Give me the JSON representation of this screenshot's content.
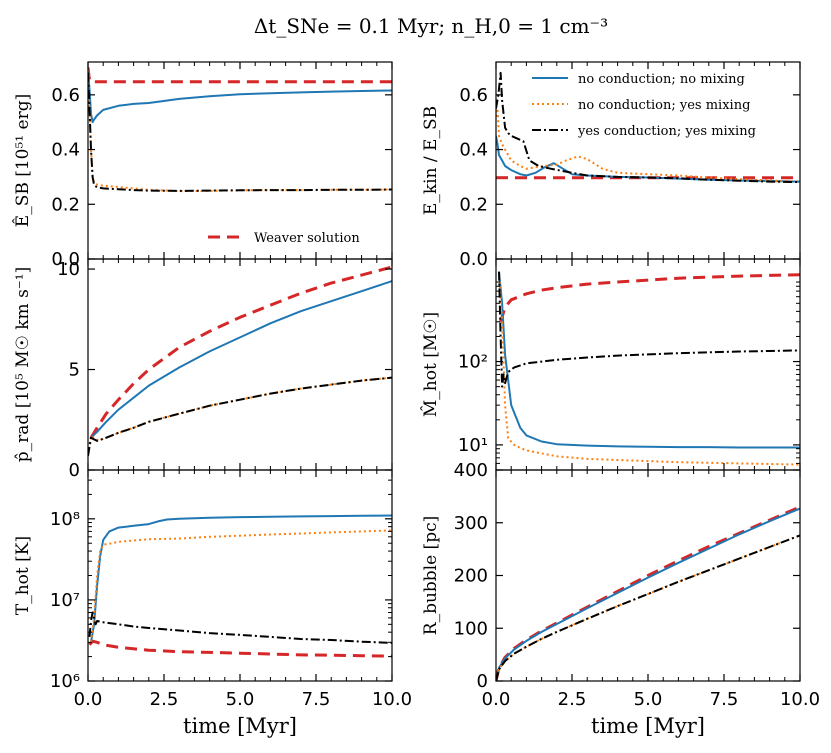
{
  "title": "Δt_SNe = 0.1 Myr;    n_H,0 = 1 cm⁻³",
  "colors": {
    "no_cond_no_mix": "#1f77b4",
    "no_cond_yes_mix": "#ff7f0e",
    "yes_cond_yes_mix": "#000000",
    "weaver": "#d62728"
  },
  "chart_data": [
    {
      "id": "esb",
      "type": "line",
      "ylabel": "Ê_SB [10⁵¹ erg]",
      "xlabel": "",
      "xlim": [
        0,
        10
      ],
      "ylim": [
        0,
        0.72
      ],
      "yticks": [
        0.0,
        0.2,
        0.4,
        0.6
      ],
      "ytick_labels": [
        "0.0",
        "0.2",
        "0.4",
        "0.6"
      ],
      "xticks": [
        0,
        2.5,
        5,
        7.5,
        10
      ],
      "xtick_labels": [
        "",
        "",
        "",
        "",
        ""
      ],
      "legend": {
        "placement": "lower-right",
        "entries": [
          {
            "name": "Weaver solution",
            "series": "weaver"
          }
        ]
      },
      "series": [
        {
          "key": "weaver",
          "x": [
            0,
            0.03,
            0.06,
            0.1,
            10
          ],
          "y": [
            0.7,
            0.67,
            0.65,
            0.648,
            0.648
          ]
        },
        {
          "key": "no_cond_no_mix",
          "x": [
            0,
            0.05,
            0.1,
            0.15,
            0.2,
            0.3,
            0.5,
            1,
            1.5,
            2,
            3,
            4,
            5,
            6,
            7,
            8,
            9,
            10
          ],
          "y": [
            0.69,
            0.62,
            0.53,
            0.5,
            0.51,
            0.525,
            0.545,
            0.56,
            0.567,
            0.57,
            0.585,
            0.595,
            0.602,
            0.606,
            0.609,
            0.612,
            0.614,
            0.616
          ]
        },
        {
          "key": "no_cond_yes_mix",
          "x": [
            0,
            0.05,
            0.1,
            0.15,
            0.2,
            0.3,
            0.5,
            1,
            1.5,
            2,
            3,
            4,
            5,
            6,
            7,
            8,
            9,
            10
          ],
          "y": [
            0.69,
            0.55,
            0.4,
            0.3,
            0.28,
            0.272,
            0.268,
            0.263,
            0.258,
            0.253,
            0.248,
            0.249,
            0.251,
            0.252,
            0.252,
            0.253,
            0.253,
            0.254
          ]
        },
        {
          "key": "yes_cond_yes_mix",
          "x": [
            0,
            0.05,
            0.1,
            0.15,
            0.2,
            0.3,
            0.5,
            1,
            1.5,
            2,
            3,
            4,
            5,
            6,
            7,
            8,
            9,
            10
          ],
          "y": [
            0.68,
            0.55,
            0.4,
            0.3,
            0.27,
            0.262,
            0.258,
            0.255,
            0.252,
            0.25,
            0.249,
            0.25,
            0.251,
            0.252,
            0.252,
            0.253,
            0.253,
            0.254
          ]
        }
      ]
    },
    {
      "id": "ekin",
      "type": "line",
      "ylabel": "E_kin / E_SB",
      "xlabel": "",
      "xlim": [
        0,
        10
      ],
      "ylim": [
        0,
        0.72
      ],
      "yticks": [
        0.0,
        0.2,
        0.4,
        0.6
      ],
      "ytick_labels": [
        "0.0",
        "0.2",
        "0.4",
        "0.6"
      ],
      "xticks": [
        0,
        2.5,
        5,
        7.5,
        10
      ],
      "xtick_labels": [
        "",
        "",
        "",
        "",
        ""
      ],
      "legend": {
        "placement": "top-right",
        "entries": [
          {
            "name": "no conduction; no mixing",
            "series": "no_cond_no_mix"
          },
          {
            "name": "no conduction; yes mixing",
            "series": "no_cond_yes_mix"
          },
          {
            "name": "yes conduction; yes mixing",
            "series": "yes_cond_yes_mix"
          }
        ]
      },
      "series": [
        {
          "key": "weaver",
          "x": [
            0,
            10
          ],
          "y": [
            0.297,
            0.297
          ]
        },
        {
          "key": "no_cond_no_mix",
          "x": [
            0,
            0.05,
            0.1,
            0.2,
            0.3,
            0.5,
            0.8,
            1,
            1.3,
            1.6,
            1.9,
            2.2,
            2.5,
            3,
            4,
            5,
            6,
            7,
            8,
            9,
            10
          ],
          "y": [
            0.45,
            0.42,
            0.38,
            0.36,
            0.34,
            0.325,
            0.31,
            0.305,
            0.315,
            0.335,
            0.35,
            0.33,
            0.31,
            0.305,
            0.3,
            0.298,
            0.294,
            0.29,
            0.287,
            0.285,
            0.283
          ]
        },
        {
          "key": "no_cond_yes_mix",
          "x": [
            0,
            0.05,
            0.1,
            0.2,
            0.3,
            0.5,
            0.8,
            1,
            1.3,
            1.6,
            2,
            2.3,
            2.7,
            3,
            3.5,
            4,
            5,
            6,
            7,
            8,
            9,
            10
          ],
          "y": [
            0.52,
            0.55,
            0.45,
            0.42,
            0.4,
            0.36,
            0.34,
            0.33,
            0.335,
            0.34,
            0.345,
            0.36,
            0.375,
            0.365,
            0.33,
            0.315,
            0.31,
            0.305,
            0.298,
            0.292,
            0.287,
            0.283
          ]
        },
        {
          "key": "yes_cond_yes_mix",
          "x": [
            0,
            0.08,
            0.15,
            0.2,
            0.3,
            0.4,
            0.5,
            0.7,
            0.9,
            1.1,
            1.4,
            1.8,
            2.5,
            3,
            4,
            5,
            6,
            7,
            8,
            9,
            10
          ],
          "y": [
            0.55,
            0.6,
            0.68,
            0.58,
            0.48,
            0.46,
            0.45,
            0.44,
            0.43,
            0.36,
            0.34,
            0.33,
            0.315,
            0.305,
            0.3,
            0.298,
            0.295,
            0.29,
            0.286,
            0.283,
            0.281
          ]
        }
      ]
    },
    {
      "id": "prad",
      "type": "line",
      "ylabel": "p̂_rad [10⁵ M☉ km s⁻¹]",
      "xlabel": "",
      "xlim": [
        0,
        10
      ],
      "ylim": [
        0,
        10.5
      ],
      "yticks": [
        0,
        5,
        10
      ],
      "ytick_labels": [
        "0",
        "5",
        "10"
      ],
      "xticks": [
        0,
        2.5,
        5,
        7.5,
        10
      ],
      "xtick_labels": [
        "",
        "",
        "",
        "",
        ""
      ],
      "series": [
        {
          "key": "weaver",
          "x": [
            0.1,
            0.3,
            0.6,
            1,
            1.5,
            2,
            3,
            4,
            5,
            6,
            7,
            8,
            9,
            10
          ],
          "y": [
            1.6,
            2.1,
            2.8,
            3.5,
            4.3,
            5.0,
            6.1,
            6.9,
            7.6,
            8.2,
            8.8,
            9.3,
            9.7,
            10.1
          ]
        },
        {
          "key": "no_cond_no_mix",
          "x": [
            0.1,
            0.3,
            0.6,
            1,
            1.5,
            2,
            3,
            4,
            5,
            6,
            7,
            8,
            9,
            10
          ],
          "y": [
            1.6,
            1.9,
            2.4,
            3.0,
            3.6,
            4.2,
            5.1,
            5.9,
            6.6,
            7.3,
            7.9,
            8.4,
            8.9,
            9.4
          ]
        },
        {
          "key": "no_cond_yes_mix",
          "x": [
            0,
            0.1,
            0.3,
            0.5,
            1,
            1.5,
            2,
            3,
            4,
            5,
            6,
            7,
            8,
            9,
            10
          ],
          "y": [
            0.8,
            1.7,
            1.5,
            1.55,
            1.85,
            2.1,
            2.4,
            2.8,
            3.2,
            3.5,
            3.8,
            4.05,
            4.25,
            4.45,
            4.6
          ]
        },
        {
          "key": "yes_cond_yes_mix",
          "x": [
            0,
            0.1,
            0.3,
            0.5,
            1,
            1.5,
            2,
            3,
            4,
            5,
            6,
            7,
            8,
            9,
            10
          ],
          "y": [
            0.7,
            1.6,
            1.45,
            1.55,
            1.85,
            2.1,
            2.4,
            2.8,
            3.2,
            3.5,
            3.8,
            4.05,
            4.25,
            4.45,
            4.6
          ]
        }
      ]
    },
    {
      "id": "mhot",
      "type": "line",
      "yscale": "log",
      "ylabel": "M̂_hot [M☉]",
      "xlabel": "",
      "xlim": [
        0,
        10
      ],
      "ylim": [
        5,
        1700
      ],
      "yticks": [
        10,
        100
      ],
      "ytick_labels": [
        "10¹",
        "10²"
      ],
      "xticks": [
        0,
        2.5,
        5,
        7.5,
        10
      ],
      "xtick_labels": [
        "",
        "",
        "",
        "",
        ""
      ],
      "series": [
        {
          "key": "weaver",
          "x": [
            0.15,
            0.3,
            0.5,
            1,
            1.5,
            2,
            3,
            4,
            5,
            6,
            7,
            8,
            9,
            10
          ],
          "y": [
            300,
            450,
            550,
            650,
            720,
            770,
            850,
            900,
            950,
            1000,
            1030,
            1060,
            1080,
            1100
          ]
        },
        {
          "key": "no_cond_no_mix",
          "x": [
            0.1,
            0.2,
            0.3,
            0.5,
            0.8,
            1,
            1.5,
            2,
            3,
            4,
            5,
            6,
            7,
            8,
            9,
            10
          ],
          "y": [
            1200,
            500,
            120,
            30,
            16,
            13,
            11,
            10.2,
            9.8,
            9.6,
            9.5,
            9.4,
            9.4,
            9.3,
            9.3,
            9.3
          ]
        },
        {
          "key": "no_cond_yes_mix",
          "x": [
            0.1,
            0.2,
            0.3,
            0.4,
            0.6,
            0.8,
            1,
            1.5,
            2,
            3,
            4,
            5,
            6,
            7,
            8,
            9,
            10
          ],
          "y": [
            1200,
            300,
            30,
            12,
            10,
            9.2,
            8.6,
            7.9,
            7.3,
            6.8,
            6.6,
            6.4,
            6.2,
            6.1,
            6.0,
            5.9,
            5.8
          ]
        },
        {
          "key": "yes_cond_yes_mix",
          "x": [
            0.1,
            0.15,
            0.2,
            0.25,
            0.3,
            0.4,
            0.6,
            0.8,
            1,
            1.5,
            2,
            3,
            4,
            5,
            6,
            7,
            8,
            9,
            10
          ],
          "y": [
            1200,
            200,
            50,
            70,
            55,
            75,
            85,
            90,
            95,
            100,
            105,
            112,
            118,
            122,
            126,
            129,
            132,
            134,
            136
          ]
        }
      ]
    },
    {
      "id": "thot",
      "type": "line",
      "yscale": "log",
      "ylabel": "T_hot [K]",
      "xlabel": "time [Myr]",
      "xlim": [
        0,
        10
      ],
      "ylim": [
        1000000,
        400000000
      ],
      "yticks": [
        1000000,
        10000000,
        100000000
      ],
      "ytick_labels": [
        "10⁶",
        "10⁷",
        "10⁸"
      ],
      "xticks": [
        0,
        2.5,
        5,
        7.5,
        10
      ],
      "xtick_labels": [
        "0.0",
        "2.5",
        "5.0",
        "7.5",
        "10.0"
      ],
      "series": [
        {
          "key": "weaver",
          "x": [
            0.05,
            0.15,
            0.3,
            0.5,
            1,
            2,
            3,
            4,
            5,
            6,
            7,
            8,
            9,
            10
          ],
          "y": [
            2800000,
            3100000,
            3000000,
            2800000,
            2600000,
            2400000,
            2300000,
            2250000,
            2200000,
            2150000,
            2100000,
            2080000,
            2050000,
            2030000
          ]
        },
        {
          "key": "no_cond_no_mix",
          "x": [
            0.1,
            0.2,
            0.3,
            0.4,
            0.5,
            0.7,
            1,
            1.5,
            2,
            2.3,
            2.6,
            3,
            4,
            5,
            6,
            7,
            8,
            9,
            10
          ],
          "y": [
            3000000,
            5000000,
            15000000,
            35000000,
            55000000,
            70000000,
            78000000,
            82000000,
            86000000,
            93000000,
            98000000,
            100000000,
            103000000,
            105000000,
            106000000,
            107000000,
            108000000,
            109000000,
            110000000
          ]
        },
        {
          "key": "no_cond_yes_mix",
          "x": [
            0.1,
            0.2,
            0.3,
            0.4,
            0.5,
            0.8,
            1,
            1.5,
            2,
            3,
            4,
            5,
            6,
            7,
            8,
            9,
            10
          ],
          "y": [
            3000000,
            6000000,
            20000000,
            40000000,
            48000000,
            50000000,
            52000000,
            54000000,
            56000000,
            57000000,
            60000000,
            62000000,
            64000000,
            66000000,
            68000000,
            70000000,
            72000000
          ]
        },
        {
          "key": "yes_cond_yes_mix",
          "x": [
            0.05,
            0.1,
            0.15,
            0.2,
            0.25,
            0.3,
            0.5,
            1,
            1.5,
            2,
            3,
            4,
            5,
            6,
            7,
            8,
            9,
            10
          ],
          "y": [
            3500000,
            5500000,
            7000000,
            6000000,
            5000000,
            5500000,
            5300000,
            5000000,
            4700000,
            4500000,
            4200000,
            3900000,
            3700000,
            3500000,
            3300000,
            3200000,
            3050000,
            2950000
          ]
        }
      ]
    },
    {
      "id": "rbubble",
      "type": "line",
      "ylabel": "R_bubble [pc]",
      "xlabel": "time [Myr]",
      "xlim": [
        0,
        10
      ],
      "ylim": [
        0,
        400
      ],
      "yticks": [
        0,
        100,
        200,
        300,
        400
      ],
      "ytick_labels": [
        "0",
        "100",
        "200",
        "300",
        "400"
      ],
      "xticks": [
        0,
        2.5,
        5,
        7.5,
        10
      ],
      "xtick_labels": [
        "0.0",
        "2.5",
        "5.0",
        "7.5",
        "10.0"
      ],
      "series": [
        {
          "key": "weaver",
          "x": [
            0,
            0.1,
            0.3,
            0.6,
            1,
            1.5,
            2,
            3,
            4,
            5,
            6,
            7,
            8,
            9,
            10
          ],
          "y": [
            0,
            25,
            45,
            62,
            78,
            95,
            110,
            140,
            170,
            200,
            228,
            255,
            280,
            305,
            330
          ]
        },
        {
          "key": "no_cond_no_mix",
          "x": [
            0,
            0.1,
            0.3,
            0.6,
            1,
            1.5,
            2,
            3,
            4,
            5,
            6,
            7,
            8,
            9,
            10
          ],
          "y": [
            0,
            25,
            43,
            60,
            76,
            93,
            108,
            138,
            167,
            196,
            224,
            251,
            278,
            303,
            327
          ]
        },
        {
          "key": "no_cond_yes_mix",
          "x": [
            0,
            0.1,
            0.3,
            0.6,
            1,
            1.5,
            2,
            3,
            4,
            5,
            6,
            7,
            8,
            9,
            10
          ],
          "y": [
            0,
            22,
            38,
            52,
            65,
            80,
            93,
            118,
            142,
            165,
            188,
            210,
            232,
            254,
            276
          ]
        },
        {
          "key": "yes_cond_yes_mix",
          "x": [
            0,
            0.1,
            0.3,
            0.6,
            1,
            1.5,
            2,
            3,
            4,
            5,
            6,
            7,
            8,
            9,
            10
          ],
          "y": [
            0,
            22,
            38,
            52,
            65,
            80,
            93,
            118,
            142,
            165,
            188,
            210,
            232,
            254,
            276
          ]
        }
      ]
    }
  ]
}
